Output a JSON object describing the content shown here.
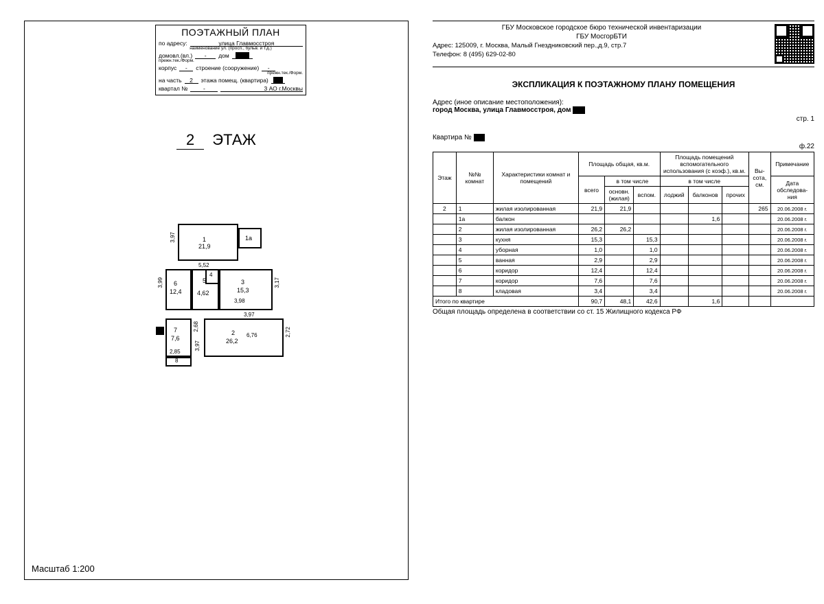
{
  "left": {
    "header": {
      "title": "ПОЭТАЖНЫЙ ПЛАН",
      "row_address_lbl": "по адресу:",
      "row_address_val": "улица Главмосстроя",
      "row_address_sub": "наименование ул. (просп., бульв. и т.д.)",
      "row_domovl_lbl": "домовл.(вл.)",
      "row_domovl_val": "-",
      "row_dom_lbl": "дом",
      "row_domsub": "прежн.тек./Форм.",
      "row_korpus_lbl": "корпус",
      "row_korpus_val": "-",
      "row_stroenie_lbl": "строение (сооружение)",
      "row_stroenie_val": "-",
      "row_stroenie_sub": "прежн.тек./Форм.",
      "row_nchast_lbl": "на часть",
      "row_nchast_val": "2",
      "row_etazha_lbl": "этажа помещ. (квартира)",
      "row_kvartal_lbl": "квартал №",
      "row_kvartal_val": "-",
      "row_ao_lbl": "3 АО г.Москвы"
    },
    "floor_num": "2",
    "floor_word": "ЭТАЖ",
    "scale": "Масштаб 1:200",
    "plan_labels": {
      "r1": "1",
      "a1": "21,9",
      "d1_w": "5,52",
      "d1_h": "3,97",
      "r1a": "1а",
      "r2": "2",
      "a2": "26,2",
      "d2_w": "6,76",
      "d2_h": "2,72",
      "r3": "3",
      "a3": "15,3",
      "d3_w": "3,98",
      "d3_h": "3,17",
      "d3_h2": "3,97",
      "r4": "4",
      "r5": "5",
      "a5": "4,62",
      "r6": "6",
      "a6": "12,4",
      "d6_h": "3,99",
      "r7": "7",
      "a7": "7,6",
      "d7_w": "2,85",
      "d7_h": "2,68",
      "r8": "8",
      "d8_h": "3,97"
    }
  },
  "right": {
    "org1": "ГБУ Московское городское бюро технической инвентаризации",
    "org2": "ГБУ МосгорБТИ",
    "addr": "Адрес: 125009, г. Москва, Малый Гнездниковский пер.,д.9, стр.7",
    "tel": "Телефон: 8 (495) 629-02-80",
    "title": "ЭКСПЛИКАЦИЯ К ПОЭТАЖНОМУ ПЛАНУ ПОМЕЩЕНИЯ",
    "addr_lbl": "Адрес (иное описание местоположения):",
    "addr_val": "город Москва, улица Главмосстроя, дом",
    "page": "стр. 1",
    "kvartira_lbl": "Квартира №",
    "f22": "ф.22",
    "th": {
      "etazh": "Этаж",
      "nomer": "№№ комнат",
      "char": "Характеристики комнат и помещений",
      "obshch": "Площадь общая, кв.м.",
      "vsego": "всего",
      "vtom": "в том числе",
      "osnov": "основн. (жилая)",
      "vspom": "вспом.",
      "vspom_hdr": "Площадь помещений вспомогательного использования (с коэф.), кв.м.",
      "lodzh": "лоджий",
      "balkon": "балконов",
      "proch": "прочих",
      "vysota": "Вы-сота, см.",
      "prim": "Примечание",
      "data": "Дата обследова-ния"
    },
    "rows": [
      {
        "etazh": "2",
        "n": "1",
        "ch": "жилая изолированная",
        "vsego": "21,9",
        "osn": "21,9",
        "vsp": "",
        "lod": "",
        "bal": "",
        "pro": "",
        "h": "265",
        "d": "20.06.2008 г."
      },
      {
        "etazh": "",
        "n": "1а",
        "ch": "балкон",
        "vsego": "",
        "osn": "",
        "vsp": "",
        "lod": "",
        "bal": "1,6",
        "pro": "",
        "h": "",
        "d": "20.06.2008 г."
      },
      {
        "etazh": "",
        "n": "2",
        "ch": "жилая изолированная",
        "vsego": "26,2",
        "osn": "26,2",
        "vsp": "",
        "lod": "",
        "bal": "",
        "pro": "",
        "h": "",
        "d": "20.06.2008 г."
      },
      {
        "etazh": "",
        "n": "3",
        "ch": "кухня",
        "vsego": "15,3",
        "osn": "",
        "vsp": "15,3",
        "lod": "",
        "bal": "",
        "pro": "",
        "h": "",
        "d": "20.06.2008 г."
      },
      {
        "etazh": "",
        "n": "4",
        "ch": "уборная",
        "vsego": "1,0",
        "osn": "",
        "vsp": "1,0",
        "lod": "",
        "bal": "",
        "pro": "",
        "h": "",
        "d": "20.06.2008 г."
      },
      {
        "etazh": "",
        "n": "5",
        "ch": "ванная",
        "vsego": "2,9",
        "osn": "",
        "vsp": "2,9",
        "lod": "",
        "bal": "",
        "pro": "",
        "h": "",
        "d": "20.06.2008 г."
      },
      {
        "etazh": "",
        "n": "6",
        "ch": "коридор",
        "vsego": "12,4",
        "osn": "",
        "vsp": "12,4",
        "lod": "",
        "bal": "",
        "pro": "",
        "h": "",
        "d": "20.06.2008 г."
      },
      {
        "etazh": "",
        "n": "7",
        "ch": "коридор",
        "vsego": "7,6",
        "osn": "",
        "vsp": "7,6",
        "lod": "",
        "bal": "",
        "pro": "",
        "h": "",
        "d": "20.06.2008 г."
      },
      {
        "etazh": "",
        "n": "8",
        "ch": "кладовая",
        "vsego": "3,4",
        "osn": "",
        "vsp": "3,4",
        "lod": "",
        "bal": "",
        "pro": "",
        "h": "",
        "d": "20.06.2008 г."
      }
    ],
    "total_lbl": "Итого по квартире",
    "total": {
      "vsego": "90,7",
      "osn": "48,1",
      "vsp": "42,6",
      "lod": "",
      "bal": "1,6",
      "pro": "",
      "h": "",
      "d": ""
    },
    "foot": "Общая площадь определена в соответствии со ст. 15 Жилищного кодекса РФ"
  }
}
